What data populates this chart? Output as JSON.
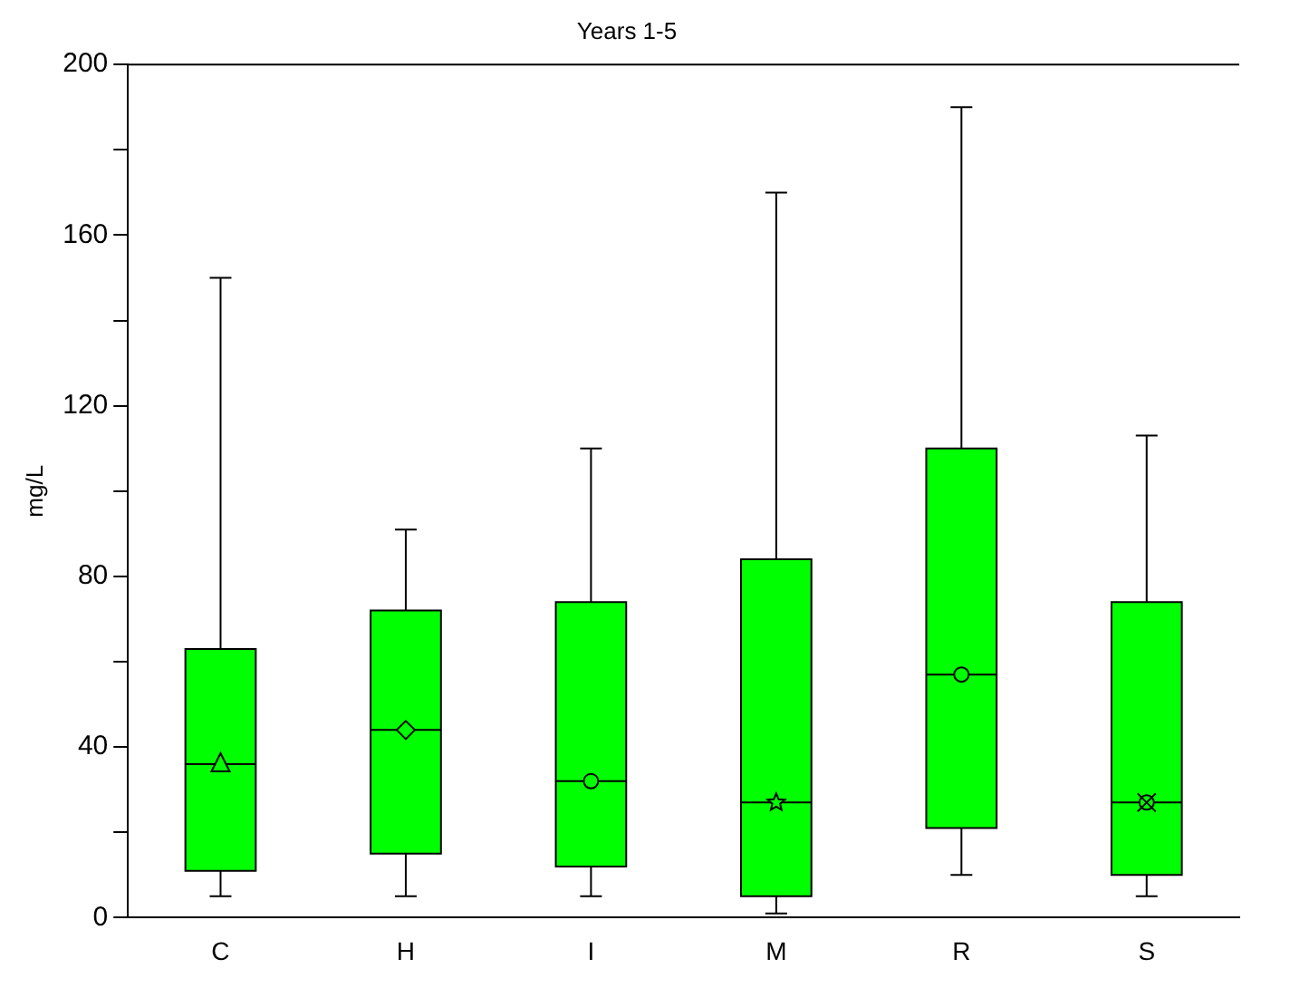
{
  "chart_data": {
    "type": "box",
    "title": "Years 1-5",
    "ylabel": "mg/L",
    "categories": [
      "C",
      "H",
      "I",
      "M",
      "R",
      "S"
    ],
    "boxes": [
      {
        "low": 5,
        "q1": 11,
        "median": 36,
        "q3": 63,
        "high": 150,
        "mean": 36
      },
      {
        "low": 5,
        "q1": 15,
        "median": 44,
        "q3": 72,
        "high": 91,
        "mean": 44
      },
      {
        "low": 5,
        "q1": 12,
        "median": 32,
        "q3": 74,
        "high": 110,
        "mean": 32
      },
      {
        "low": 1,
        "q1": 5,
        "median": 27,
        "q3": 84,
        "high": 170,
        "mean": 27
      },
      {
        "low": 10,
        "q1": 21,
        "median": 57,
        "q3": 110,
        "high": 190,
        "mean": 57
      },
      {
        "low": 5,
        "q1": 10,
        "median": 27,
        "q3": 74,
        "high": 113,
        "mean": 27
      }
    ],
    "color": "#00ff00",
    "ylim": [
      0,
      200
    ],
    "yticks": [
      0,
      {
        "value": 20,
        "label": null
      },
      40,
      {
        "value": 60,
        "label": null
      },
      80,
      {
        "value": 100,
        "label": null
      },
      120,
      {
        "value": 140,
        "label": null
      },
      160,
      {
        "value": 180,
        "label": null
      },
      200
    ],
    "grid": false,
    "legend": false,
    "marker": "circle"
  }
}
